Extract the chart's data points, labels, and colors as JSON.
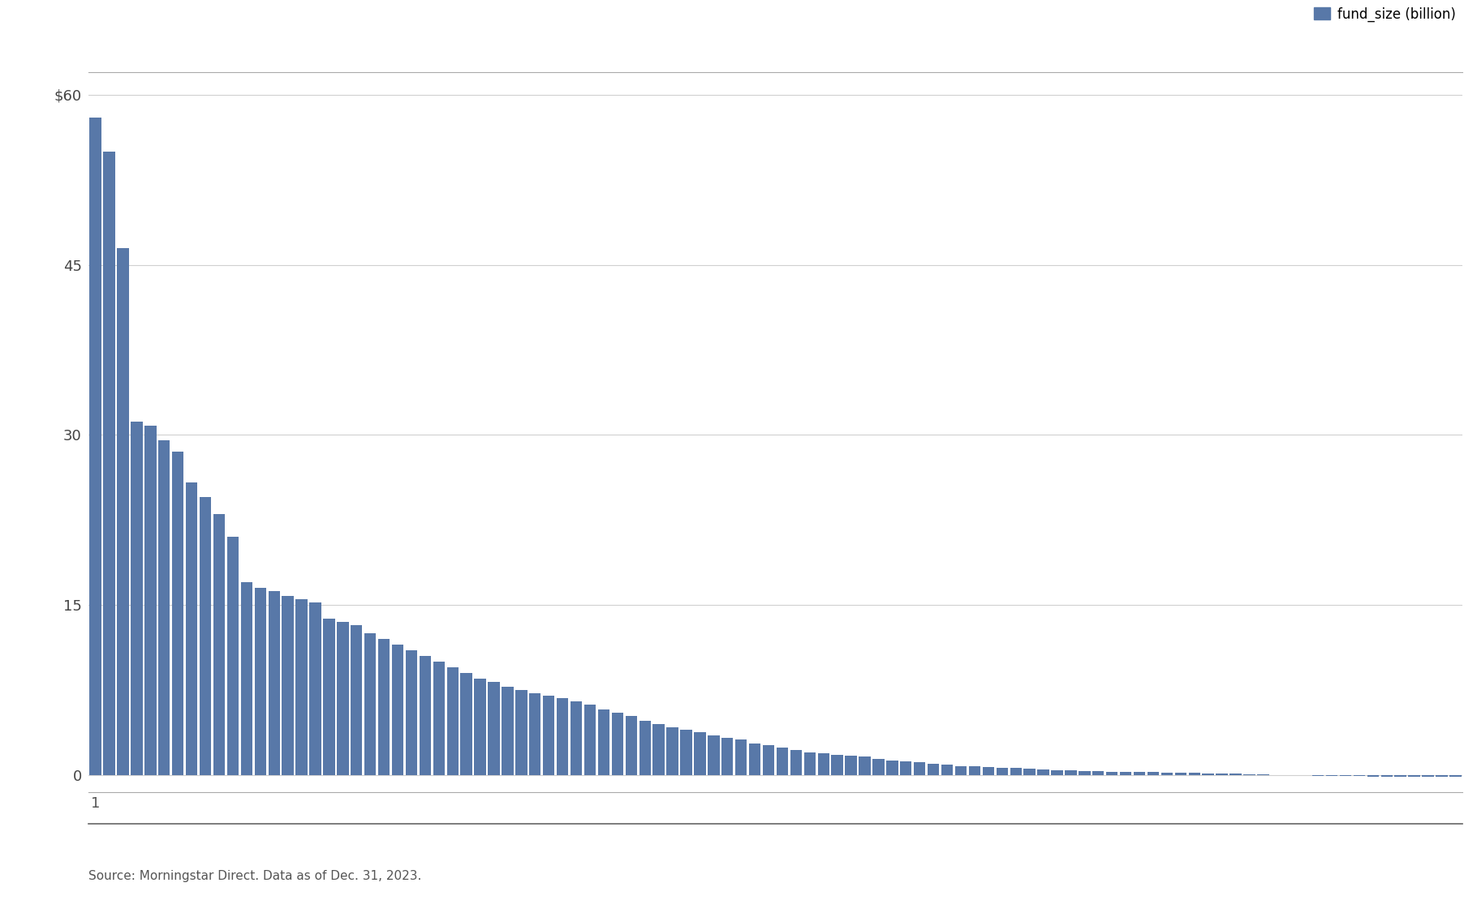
{
  "values": [
    58.0,
    55.0,
    46.5,
    31.2,
    30.8,
    29.5,
    28.5,
    25.8,
    24.5,
    23.0,
    21.0,
    17.0,
    16.5,
    16.2,
    15.8,
    15.5,
    15.2,
    13.8,
    13.5,
    13.2,
    12.5,
    12.0,
    11.5,
    11.0,
    10.5,
    10.0,
    9.5,
    9.0,
    8.5,
    8.2,
    7.8,
    7.5,
    7.2,
    7.0,
    6.8,
    6.5,
    6.2,
    5.8,
    5.5,
    5.2,
    4.8,
    4.5,
    4.2,
    4.0,
    3.8,
    3.5,
    3.3,
    3.1,
    2.8,
    2.6,
    2.4,
    2.2,
    2.0,
    1.9,
    1.8,
    1.7,
    1.6,
    1.4,
    1.3,
    1.2,
    1.1,
    1.0,
    0.9,
    0.8,
    0.75,
    0.7,
    0.65,
    0.6,
    0.55,
    0.5,
    0.45,
    0.4,
    0.35,
    0.32,
    0.3,
    0.28,
    0.26,
    0.24,
    0.22,
    0.2,
    0.18,
    0.15,
    0.12,
    0.1,
    0.08,
    0.05,
    0.02,
    0.0,
    -0.02,
    -0.05,
    -0.07,
    -0.09,
    -0.11,
    -0.12,
    -0.13,
    -0.14,
    -0.15,
    -0.16,
    -0.17,
    -0.18
  ],
  "bar_color": "#5878a8",
  "background_color": "#ffffff",
  "ylim_min": -1.5,
  "ylim_max": 62,
  "yticks": [
    0,
    15,
    30,
    45,
    60
  ],
  "ytick_labels": [
    "0",
    "15",
    "30",
    "45",
    "$60"
  ],
  "xlabel_tick": "1",
  "legend_label": "fund_size (billion)",
  "source_text": "Source: Morningstar Direct. Data as of Dec. 31, 2023.",
  "grid_color": "#d0d0d0",
  "top_line_color": "#aaaaaa",
  "bottom_sep_color": "#666666"
}
